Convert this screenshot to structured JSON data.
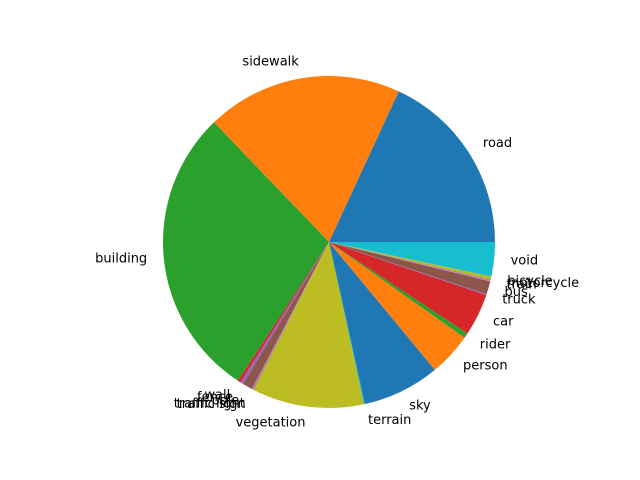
{
  "chart_data": {
    "type": "pie",
    "title": "",
    "start_angle_deg": 0,
    "direction": "counterclockwise",
    "slices": [
      {
        "label": "road",
        "value": 18.5,
        "color": "#1f77b4"
      },
      {
        "label": "sidewalk",
        "value": 19.5,
        "color": "#ff7f0e"
      },
      {
        "label": "building",
        "value": 29.2,
        "color": "#2ca02c"
      },
      {
        "label": "wall",
        "value": 0.3,
        "color": "#d62728"
      },
      {
        "label": "fence",
        "value": 0.3,
        "color": "#9467bd"
      },
      {
        "label": "pole",
        "value": 1.0,
        "color": "#8c564b"
      },
      {
        "label": "traffic light",
        "value": 0.1,
        "color": "#e377c2"
      },
      {
        "label": "traffic sign",
        "value": 0.1,
        "color": "#7f7f7f"
      },
      {
        "label": "vegetation",
        "value": 11.1,
        "color": "#bcbd22"
      },
      {
        "label": "terrain",
        "value": 0.1,
        "color": "#17becf"
      },
      {
        "label": "sky",
        "value": 7.7,
        "color": "#1f77b4"
      },
      {
        "label": "person",
        "value": 4.3,
        "color": "#ff7f0e"
      },
      {
        "label": "rider",
        "value": 0.5,
        "color": "#2ca02c"
      },
      {
        "label": "car",
        "value": 4.2,
        "color": "#d62728"
      },
      {
        "label": "truck",
        "value": 0.1,
        "color": "#9467bd"
      },
      {
        "label": "bus",
        "value": 1.3,
        "color": "#8c564b"
      },
      {
        "label": "train",
        "value": 0.1,
        "color": "#e377c2"
      },
      {
        "label": "motorcycle",
        "value": 0.1,
        "color": "#7f7f7f"
      },
      {
        "label": "bicycle",
        "value": 0.3,
        "color": "#bcbd22"
      },
      {
        "label": "void",
        "value": 3.4,
        "color": "#17becf"
      }
    ]
  }
}
